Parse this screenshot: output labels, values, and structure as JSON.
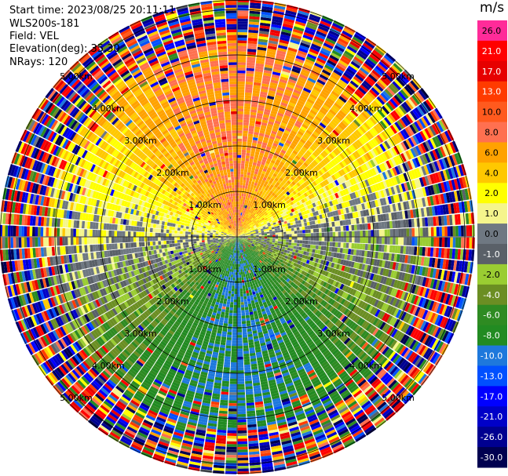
{
  "header": {
    "start_time": "Start time: 2023/08/25 20:11:11",
    "station": "WLS200s-181",
    "field": "Field: VEL",
    "elevation": "Elevation(deg): 35.30",
    "nrays": "NRays: 120"
  },
  "colorbar": {
    "unit": "m/s",
    "levels": [
      {
        "label": "26.0",
        "color": "#ff2b99"
      },
      {
        "label": "21.0",
        "color": "#ff0000"
      },
      {
        "label": "17.0",
        "color": "#e60000"
      },
      {
        "label": "13.0",
        "color": "#ff3b00"
      },
      {
        "label": "10.0",
        "color": "#ff5a1e"
      },
      {
        "label": "8.0",
        "color": "#ff7050"
      },
      {
        "label": "6.0",
        "color": "#ffa200"
      },
      {
        "label": "4.0",
        "color": "#ffc800"
      },
      {
        "label": "2.0",
        "color": "#ffff00"
      },
      {
        "label": "1.0",
        "color": "#f5f58c"
      },
      {
        "label": "0.0",
        "color": "#6f7882"
      },
      {
        "label": "-1.0",
        "color": "#5a6068"
      },
      {
        "label": "-2.0",
        "color": "#9acd32"
      },
      {
        "label": "-4.0",
        "color": "#6b8e23"
      },
      {
        "label": "-6.0",
        "color": "#2e8b22"
      },
      {
        "label": "-8.0",
        "color": "#228b22"
      },
      {
        "label": "-10.0",
        "color": "#1e78dc"
      },
      {
        "label": "-13.0",
        "color": "#0050ff"
      },
      {
        "label": "-17.0",
        "color": "#0000ff"
      },
      {
        "label": "-21.0",
        "color": "#0000c8"
      },
      {
        "label": "-26.0",
        "color": "#000090"
      },
      {
        "label": "-30.0",
        "color": "#000050"
      }
    ]
  },
  "chart_data": {
    "type": "heatmap",
    "projection": "polar PPI",
    "nrays": 120,
    "range_rings": [
      {
        "r_km": 1.0,
        "label": "1.00km"
      },
      {
        "r_km": 2.0,
        "label": "2.00km"
      },
      {
        "r_km": 3.0,
        "label": "3.00km"
      },
      {
        "r_km": 4.0,
        "label": "4.00km"
      },
      {
        "r_km": 5.0,
        "label": "5.00km"
      }
    ],
    "max_range_km": 5.2,
    "velocity_pattern": {
      "north": 8.0,
      "northeast": 2.0,
      "east": 0.0,
      "south": -8.0,
      "west": 2.0
    },
    "noisy_beyond_km": 4.2
  }
}
